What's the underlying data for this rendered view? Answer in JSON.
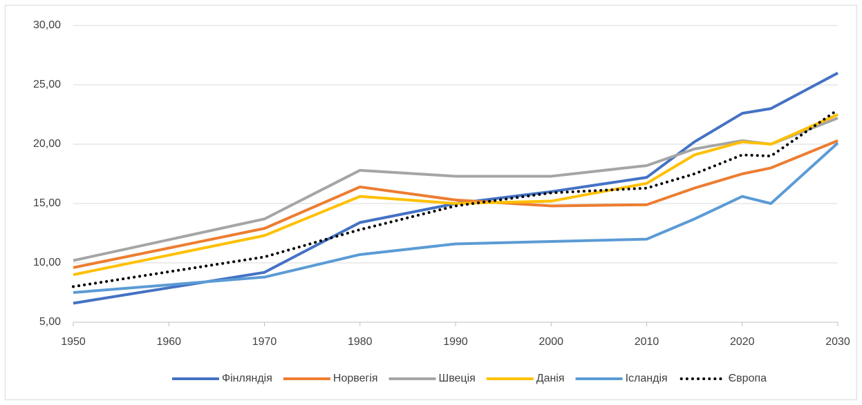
{
  "chart_data": {
    "type": "line",
    "x": [
      1950,
      1970,
      1980,
      1990,
      2000,
      2010,
      2015,
      2020,
      2023,
      2030
    ],
    "xlim": [
      1950,
      2030
    ],
    "xticks": [
      1950,
      1960,
      1970,
      1980,
      1990,
      2000,
      2010,
      2020,
      2030
    ],
    "ylim": [
      5,
      30
    ],
    "yticks": [
      {
        "value": 5,
        "label": "5,00"
      },
      {
        "value": 10,
        "label": "10,00"
      },
      {
        "value": 15,
        "label": "15,00"
      },
      {
        "value": 20,
        "label": "20,00"
      },
      {
        "value": 25,
        "label": "25,00"
      },
      {
        "value": 30,
        "label": "30,00"
      }
    ],
    "grid": true,
    "legend": "bottom",
    "series": [
      {
        "name": "Фінляндія",
        "color": "#4472c4",
        "values": [
          6.6,
          9.2,
          13.4,
          15.0,
          16.0,
          17.2,
          20.2,
          22.6,
          23.0,
          26.0
        ]
      },
      {
        "name": "Норвегія",
        "color": "#ed7d31",
        "values": [
          9.6,
          12.9,
          16.4,
          15.3,
          14.8,
          14.9,
          16.3,
          17.5,
          18.0,
          20.3
        ]
      },
      {
        "name": "Швеція",
        "color": "#a5a5a5",
        "values": [
          10.2,
          13.7,
          17.8,
          17.3,
          17.3,
          18.2,
          19.6,
          20.3,
          20.0,
          22.2
        ]
      },
      {
        "name": "Данія",
        "color": "#ffc000",
        "values": [
          9.0,
          12.3,
          15.6,
          15.0,
          15.2,
          16.7,
          19.1,
          20.2,
          20.0,
          22.5
        ]
      },
      {
        "name": "Ісландія",
        "color": "#5b9bd5",
        "values": [
          7.5,
          8.8,
          10.7,
          11.6,
          11.8,
          12.0,
          13.7,
          15.6,
          15.0,
          20.1
        ]
      },
      {
        "name": "Європа",
        "color": "#000000",
        "dash": "dotted",
        "values": [
          8.0,
          10.5,
          12.8,
          14.8,
          15.9,
          16.3,
          17.5,
          19.1,
          19.0,
          22.9
        ]
      }
    ]
  }
}
